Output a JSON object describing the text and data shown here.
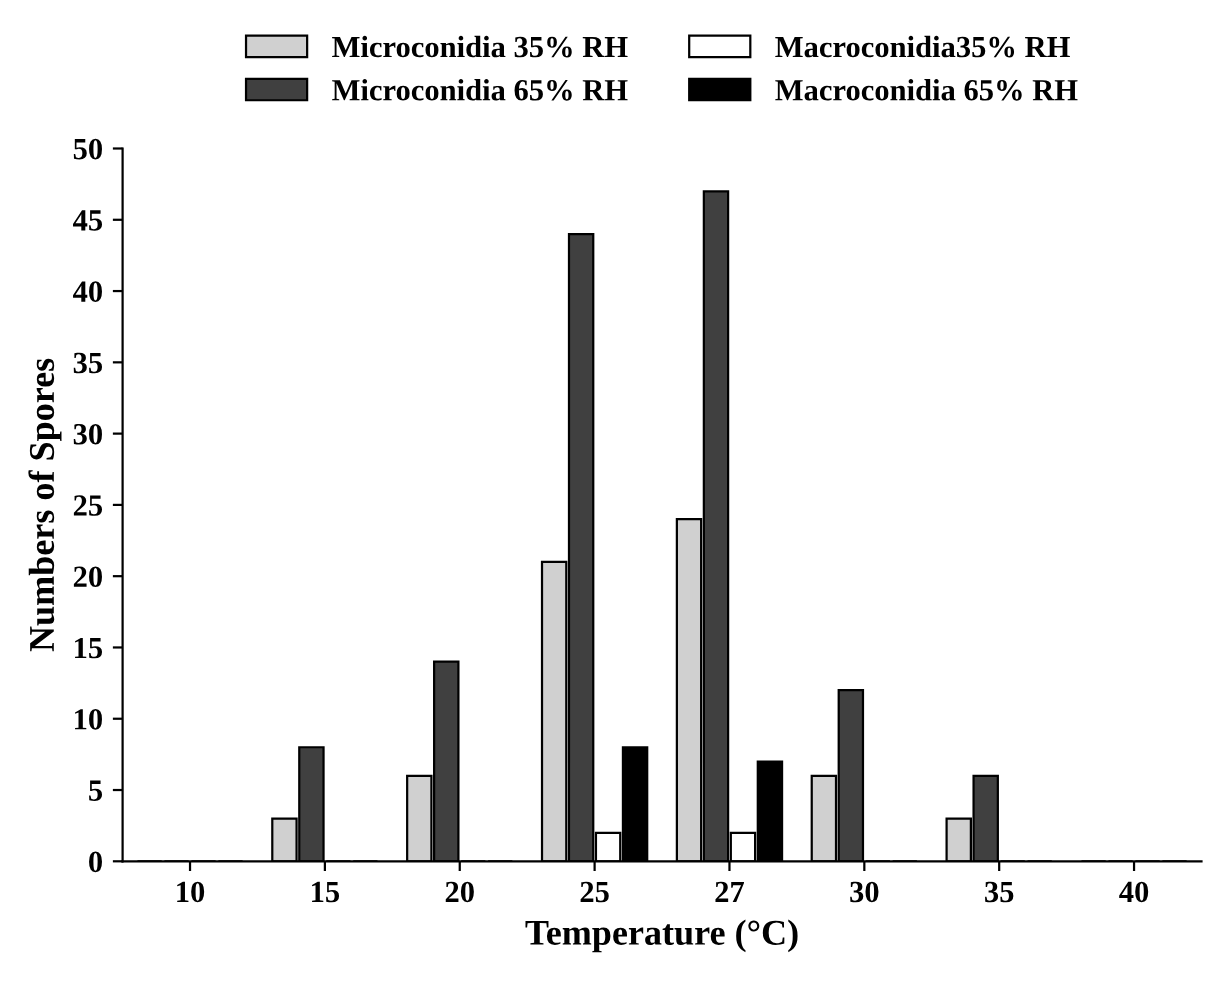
{
  "chart_data": {
    "type": "bar",
    "xlabel": "Temperature (°C)",
    "ylabel": "Numbers of Spores",
    "categories": [
      "10",
      "15",
      "20",
      "25",
      "27",
      "30",
      "35",
      "40"
    ],
    "series": [
      {
        "name": "Microconidia 35% RH",
        "color": "#d0d0d0",
        "values": [
          0,
          3,
          6,
          21,
          24,
          6,
          3,
          0
        ]
      },
      {
        "name": "Microconidia 65% RH",
        "color": "#404040",
        "values": [
          0,
          8,
          14,
          44,
          47,
          12,
          6,
          0
        ]
      },
      {
        "name": "Macroconidia35% RH",
        "color": "#ffffff",
        "values": [
          0,
          0,
          0,
          2,
          2,
          0,
          0,
          0
        ]
      },
      {
        "name": "Macroconidia 65% RH",
        "color": "#000000",
        "values": [
          0,
          0,
          0,
          8,
          7,
          0,
          0,
          0
        ]
      }
    ],
    "ylim": [
      0,
      50
    ],
    "yticks": [
      0,
      5,
      10,
      15,
      20,
      25,
      30,
      35,
      40,
      45,
      50
    ],
    "grid": false,
    "legend": "top"
  }
}
